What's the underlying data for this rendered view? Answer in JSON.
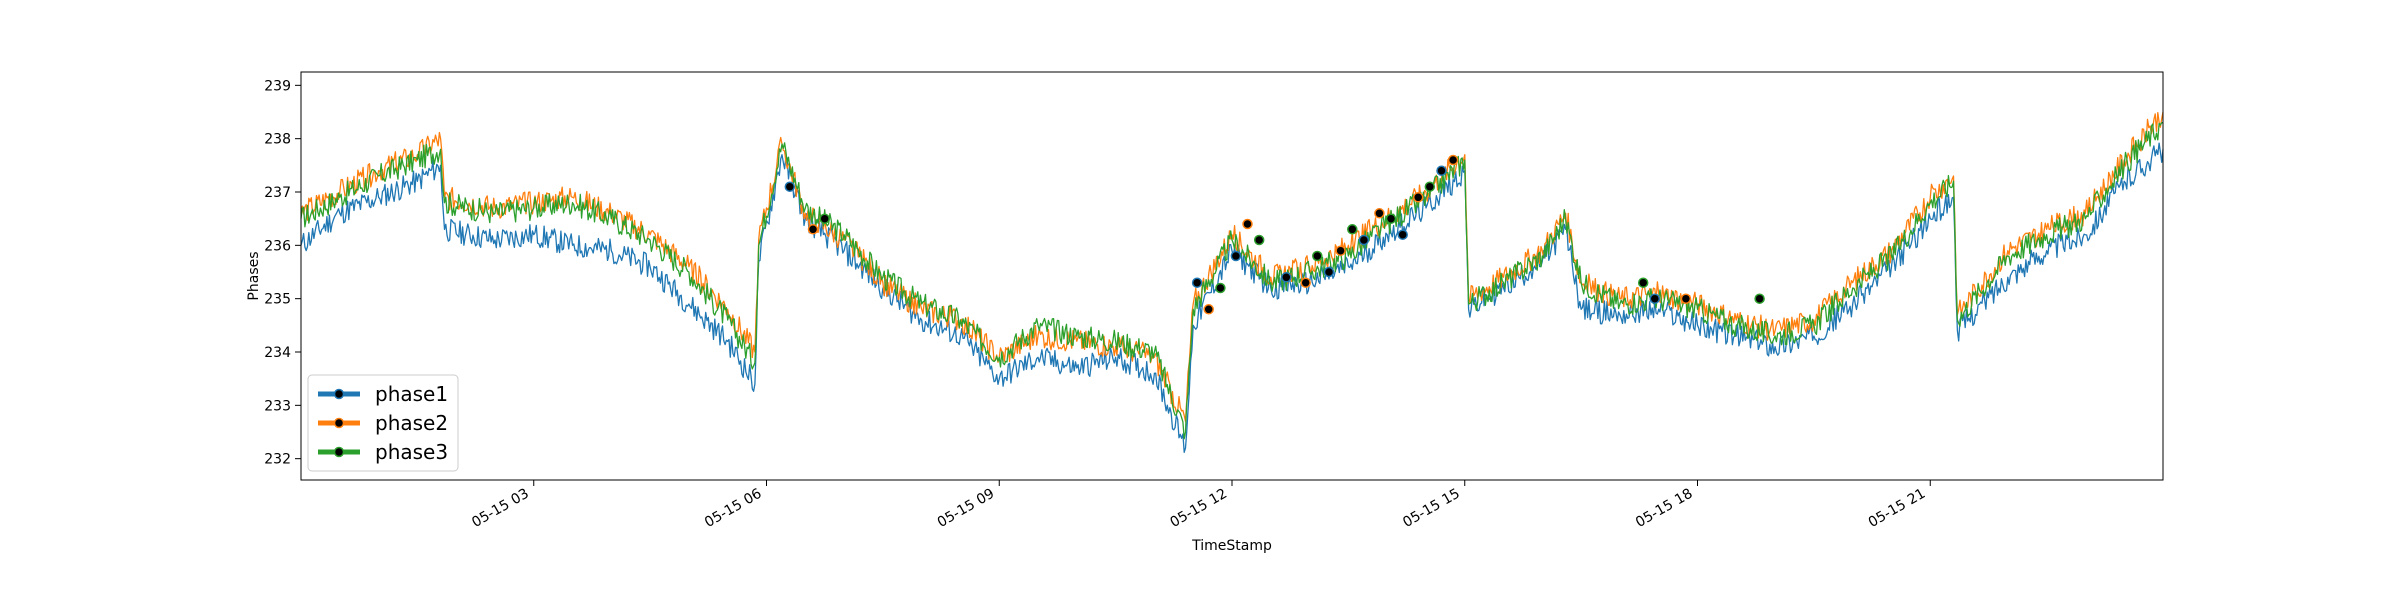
{
  "chart_data": {
    "type": "line",
    "title": "",
    "xlabel": "TimeStamp",
    "ylabel": "Phases",
    "x_unit": "hours",
    "xlim": [
      0,
      24
    ],
    "ylim": [
      231.6,
      239.25
    ],
    "grid": false,
    "legend_position": "lower-left",
    "x_ticks": [
      {
        "value": 3,
        "label": "05-15 03"
      },
      {
        "value": 6,
        "label": "05-15 06"
      },
      {
        "value": 9,
        "label": "05-15 09"
      },
      {
        "value": 12,
        "label": "05-15 12"
      },
      {
        "value": 15,
        "label": "05-15 15"
      },
      {
        "value": 18,
        "label": "05-15 18"
      },
      {
        "value": 21,
        "label": "05-15 21"
      }
    ],
    "y_ticks": [
      {
        "value": 232,
        "label": "232"
      },
      {
        "value": 233,
        "label": "233"
      },
      {
        "value": 234,
        "label": "234"
      },
      {
        "value": 235,
        "label": "235"
      },
      {
        "value": 236,
        "label": "236"
      },
      {
        "value": 237,
        "label": "237"
      },
      {
        "value": 238,
        "label": "238"
      },
      {
        "value": 239,
        "label": "239"
      }
    ],
    "x": [
      0,
      0.5,
      1,
      1.5,
      1.8,
      1.85,
      2.5,
      3,
      3.5,
      4,
      4.5,
      5,
      5.5,
      5.85,
      5.9,
      6.2,
      6.5,
      7,
      7.5,
      8,
      8.5,
      9,
      9.5,
      10,
      10.5,
      11,
      11.4,
      11.5,
      12,
      12.5,
      13,
      13.5,
      14,
      14.5,
      15,
      15.05,
      15.5,
      16,
      16.3,
      16.5,
      17,
      17.5,
      18,
      18.5,
      19,
      19.5,
      20,
      20.5,
      21,
      21.3,
      21.35,
      22,
      22.5,
      23,
      23.5,
      24
    ],
    "series": [
      {
        "name": "phase1",
        "color": "#1f77b4",
        "values": [
          236.0,
          236.6,
          236.9,
          237.2,
          237.5,
          236.3,
          236.1,
          236.2,
          236.0,
          235.9,
          235.6,
          234.9,
          234.2,
          233.4,
          235.7,
          237.7,
          236.5,
          235.9,
          235.2,
          234.6,
          234.3,
          233.5,
          233.9,
          233.7,
          233.9,
          233.6,
          232.2,
          234.5,
          235.9,
          235.2,
          235.3,
          235.6,
          236.2,
          236.7,
          237.4,
          234.8,
          235.2,
          235.7,
          236.3,
          234.8,
          234.7,
          234.8,
          234.5,
          234.3,
          234.1,
          234.3,
          234.9,
          235.6,
          236.5,
          236.9,
          234.4,
          235.4,
          235.9,
          236.2,
          237.2,
          237.8
        ]
      },
      {
        "name": "phase2",
        "color": "#ff7f0e",
        "values": [
          236.6,
          237.0,
          237.4,
          237.7,
          238.0,
          236.9,
          236.7,
          236.8,
          236.9,
          236.6,
          236.2,
          235.6,
          234.8,
          234.0,
          236.1,
          237.9,
          236.6,
          236.1,
          235.3,
          234.8,
          234.6,
          233.9,
          234.3,
          234.2,
          234.1,
          233.9,
          232.7,
          234.9,
          236.2,
          235.4,
          235.6,
          236.0,
          236.5,
          237.0,
          237.7,
          235.0,
          235.4,
          235.9,
          236.6,
          235.3,
          235.0,
          235.1,
          234.9,
          234.6,
          234.4,
          234.6,
          235.3,
          235.9,
          236.9,
          237.3,
          234.7,
          235.9,
          236.3,
          236.6,
          237.6,
          238.5
        ]
      },
      {
        "name": "phase3",
        "color": "#2ca02c",
        "values": [
          236.5,
          236.9,
          237.3,
          237.6,
          237.8,
          236.8,
          236.6,
          236.7,
          236.8,
          236.5,
          236.1,
          235.5,
          234.6,
          233.8,
          236.0,
          237.9,
          236.7,
          236.2,
          235.4,
          234.9,
          234.6,
          233.9,
          234.5,
          234.3,
          234.2,
          234.0,
          232.5,
          234.8,
          236.1,
          235.3,
          235.5,
          235.8,
          236.4,
          236.9,
          237.6,
          234.9,
          235.3,
          235.8,
          236.5,
          235.3,
          234.9,
          235.0,
          234.8,
          234.5,
          234.3,
          234.5,
          235.2,
          235.8,
          236.8,
          237.2,
          234.6,
          235.8,
          236.2,
          236.5,
          237.5,
          238.3
        ]
      }
    ],
    "anomaly_markers": [
      {
        "x": 6.3,
        "y": 237.1
      },
      {
        "x": 6.6,
        "y": 236.3
      },
      {
        "x": 6.75,
        "y": 236.5
      },
      {
        "x": 11.55,
        "y": 235.3
      },
      {
        "x": 11.7,
        "y": 234.8
      },
      {
        "x": 11.85,
        "y": 235.2
      },
      {
        "x": 12.05,
        "y": 235.8
      },
      {
        "x": 12.2,
        "y": 236.4
      },
      {
        "x": 12.35,
        "y": 236.1
      },
      {
        "x": 12.7,
        "y": 235.4
      },
      {
        "x": 12.95,
        "y": 235.3
      },
      {
        "x": 13.1,
        "y": 235.8
      },
      {
        "x": 13.25,
        "y": 235.5
      },
      {
        "x": 13.4,
        "y": 235.9
      },
      {
        "x": 13.55,
        "y": 236.3
      },
      {
        "x": 13.7,
        "y": 236.1
      },
      {
        "x": 13.9,
        "y": 236.6
      },
      {
        "x": 14.05,
        "y": 236.5
      },
      {
        "x": 14.2,
        "y": 236.2
      },
      {
        "x": 14.4,
        "y": 236.9
      },
      {
        "x": 14.55,
        "y": 237.1
      },
      {
        "x": 14.7,
        "y": 237.4
      },
      {
        "x": 14.85,
        "y": 237.6
      },
      {
        "x": 17.3,
        "y": 235.3
      },
      {
        "x": 17.45,
        "y": 235.0
      },
      {
        "x": 17.85,
        "y": 235.0
      },
      {
        "x": 18.8,
        "y": 235.0
      }
    ],
    "legend": [
      {
        "label": "phase1",
        "color": "#1f77b4"
      },
      {
        "label": "phase2",
        "color": "#ff7f0e"
      },
      {
        "label": "phase3",
        "color": "#2ca02c"
      }
    ]
  }
}
